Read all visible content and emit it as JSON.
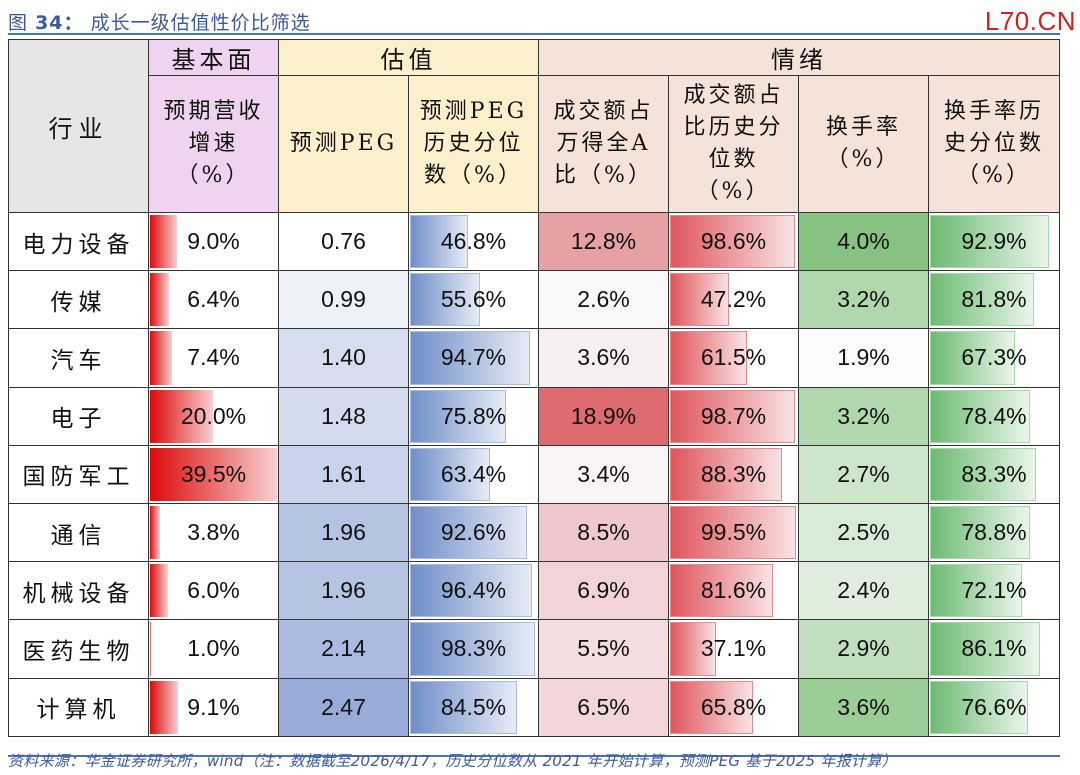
{
  "figure": {
    "label": "图",
    "number": "34：",
    "title": "成长一级估值性价比筛选",
    "watermark": "L70.CN"
  },
  "header": {
    "industry": "行业",
    "groups": [
      {
        "label": "基本面",
        "span": 1,
        "color": "#f0d3ef"
      },
      {
        "label": "估值",
        "span": 2,
        "color": "#fcf0cc"
      },
      {
        "label": "情绪",
        "span": 4,
        "color": "#f5e2d8"
      }
    ],
    "columns": [
      "预期营收增速（%）",
      "预测PEG",
      "预测PEG历史分位数（%）",
      "成交额占万得全A比（%）",
      "成交额占比历史分位数（%）",
      "换手率（%）",
      "换手率历史分位数（%）"
    ],
    "column_lines": [
      [
        "预期营收",
        "增速",
        "（%）"
      ],
      [
        "预测PEG"
      ],
      [
        "预测PEG",
        "历史分位",
        "数（%）"
      ],
      [
        "成交额占",
        "万得全A",
        "比（%）"
      ],
      [
        "成交额占",
        "比历史分",
        "位数",
        "（%）"
      ],
      [
        "换手率",
        "（%）"
      ],
      [
        "换手率历",
        "史分位数",
        "（%）"
      ]
    ]
  },
  "rows": [
    {
      "industry": "电力设备",
      "rev_growth": "9.0%",
      "peg": "0.76",
      "peg_pct": "46.8%",
      "turnover_share": "12.8%",
      "turnover_share_pct": "98.6%",
      "turnover_rate": "4.0%",
      "turnover_rate_pct": "92.9%"
    },
    {
      "industry": "传媒",
      "rev_growth": "6.4%",
      "peg": "0.99",
      "peg_pct": "55.6%",
      "turnover_share": "2.6%",
      "turnover_share_pct": "47.2%",
      "turnover_rate": "3.2%",
      "turnover_rate_pct": "81.8%"
    },
    {
      "industry": "汽车",
      "rev_growth": "7.4%",
      "peg": "1.40",
      "peg_pct": "94.7%",
      "turnover_share": "3.6%",
      "turnover_share_pct": "61.5%",
      "turnover_rate": "1.9%",
      "turnover_rate_pct": "67.3%"
    },
    {
      "industry": "电子",
      "rev_growth": "20.0%",
      "peg": "1.48",
      "peg_pct": "75.8%",
      "turnover_share": "18.9%",
      "turnover_share_pct": "98.7%",
      "turnover_rate": "3.2%",
      "turnover_rate_pct": "78.4%"
    },
    {
      "industry": "国防军工",
      "rev_growth": "39.5%",
      "peg": "1.61",
      "peg_pct": "63.4%",
      "turnover_share": "3.4%",
      "turnover_share_pct": "88.3%",
      "turnover_rate": "2.7%",
      "turnover_rate_pct": "83.3%"
    },
    {
      "industry": "通信",
      "rev_growth": "3.8%",
      "peg": "1.96",
      "peg_pct": "92.6%",
      "turnover_share": "8.5%",
      "turnover_share_pct": "99.5%",
      "turnover_rate": "2.5%",
      "turnover_rate_pct": "78.8%"
    },
    {
      "industry": "机械设备",
      "rev_growth": "6.0%",
      "peg": "1.96",
      "peg_pct": "96.4%",
      "turnover_share": "6.9%",
      "turnover_share_pct": "81.6%",
      "turnover_rate": "2.4%",
      "turnover_rate_pct": "72.1%"
    },
    {
      "industry": "医药生物",
      "rev_growth": "1.0%",
      "peg": "2.14",
      "peg_pct": "98.3%",
      "turnover_share": "5.5%",
      "turnover_share_pct": "37.1%",
      "turnover_rate": "2.9%",
      "turnover_rate_pct": "86.1%"
    },
    {
      "industry": "计算机",
      "rev_growth": "9.1%",
      "peg": "2.47",
      "peg_pct": "84.5%",
      "turnover_share": "6.5%",
      "turnover_share_pct": "65.8%",
      "turnover_rate": "3.6%",
      "turnover_rate_pct": "76.6%"
    }
  ],
  "cell_colors": {
    "peg": [
      "#ffffff",
      "#eef1f9",
      "#d6ddef",
      "#d3dbee",
      "#c9d3eb",
      "#b6c4e4",
      "#b6c4e4",
      "#abbae0",
      "#98abd9"
    ],
    "turnover_share": [
      "#e6a1a4",
      "#faf8fb",
      "#f7eff2",
      "#de6b6f",
      "#f8f3f5",
      "#efc8cc",
      "#f2d4d8",
      "#f4dde1",
      "#f2d6da"
    ],
    "turnover_rate": [
      "#87c283",
      "#b0d7ae",
      "#fbfafd",
      "#b0d7ae",
      "#cde5cb",
      "#d8ebd6",
      "#deeddc",
      "#c1dfbe",
      "#9bcd97"
    ]
  },
  "source": "资料来源：华金证券研究所，wind（注：数据截至2026/4/17，历史分位数从 2021 年开始计算，预测PEG 基于2025 年报计算）",
  "chart_data": {
    "type": "table",
    "title": "图34：成长一级估值性价比筛选",
    "column_groups": {
      "基本面": [
        "预期营收增速（%）"
      ],
      "估值": [
        "预测PEG",
        "预测PEG历史分位数（%）"
      ],
      "情绪": [
        "成交额占万得全A比（%）",
        "成交额占比历史分位数（%）",
        "换手率（%）",
        "换手率历史分位数（%）"
      ]
    },
    "columns": [
      "行业",
      "预期营收增速（%）",
      "预测PEG",
      "预测PEG历史分位数（%）",
      "成交额占万得全A比（%）",
      "成交额占比历史分位数（%）",
      "换手率（%）",
      "换手率历史分位数（%）"
    ],
    "rows": [
      [
        "电力设备",
        9.0,
        0.76,
        46.8,
        12.8,
        98.6,
        4.0,
        92.9
      ],
      [
        "传媒",
        6.4,
        0.99,
        55.6,
        2.6,
        47.2,
        3.2,
        81.8
      ],
      [
        "汽车",
        7.4,
        1.4,
        94.7,
        3.6,
        61.5,
        1.9,
        67.3
      ],
      [
        "电子",
        20.0,
        1.48,
        75.8,
        18.9,
        98.7,
        3.2,
        78.4
      ],
      [
        "国防军工",
        39.5,
        1.61,
        63.4,
        3.4,
        88.3,
        2.7,
        83.3
      ],
      [
        "通信",
        3.8,
        1.96,
        92.6,
        8.5,
        99.5,
        2.5,
        78.8
      ],
      [
        "机械设备",
        6.0,
        1.96,
        96.4,
        6.9,
        81.6,
        2.4,
        72.1
      ],
      [
        "医药生物",
        1.0,
        2.14,
        98.3,
        5.5,
        37.1,
        2.9,
        86.1
      ],
      [
        "计算机",
        9.1,
        2.47,
        84.5,
        6.5,
        65.8,
        3.6,
        76.6
      ]
    ],
    "encodings": {
      "预期营收增速（%）": "red data bar",
      "预测PEG": "blue color scale",
      "预测PEG历史分位数（%）": "blue data bar",
      "成交额占万得全A比（%）": "red color scale",
      "成交额占比历史分位数（%）": "red data bar",
      "换手率（%）": "green color scale",
      "换手率历史分位数（%）": "green data bar"
    },
    "note": "数据截至2026/4/17，历史分位数从2021年开始计算，预测PEG基于2025年报计算",
    "source": "华金证券研究所，wind"
  }
}
